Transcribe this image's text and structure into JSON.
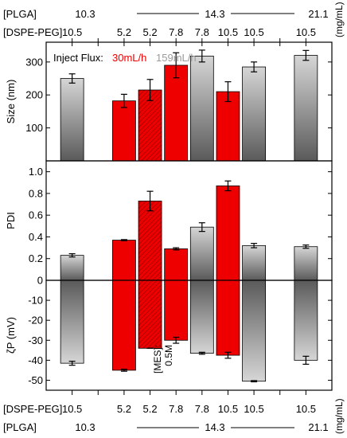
{
  "header_top": {
    "plga_label": "[PLGA]",
    "plga_values": [
      "10.3",
      "14.3",
      "21.1"
    ],
    "dspe_label": "[DSPE-PEG]",
    "dspe_values": [
      "10.5",
      "5.2",
      "5.2",
      "7.8",
      "7.8",
      "10.5",
      "10.5",
      "10.5"
    ],
    "unit": "(mg/mL)"
  },
  "header_bottom": {
    "dspe_label": "[DSPE-PEG]",
    "dspe_values": [
      "10.5",
      "5.2",
      "5.2",
      "7.8",
      "7.8",
      "10.5",
      "10.5",
      "10.5"
    ],
    "plga_label": "[PLGA]",
    "plga_values": [
      "10.3",
      "14.3",
      "21.1"
    ],
    "unit": "(mg/mL)"
  },
  "legend": {
    "prefix": "Inject Flux:",
    "item_red": "30mL/h",
    "item_gray": "159mL/h"
  },
  "annotation": {
    "line1": "[MES]:",
    "line2": "0.5M"
  },
  "colors": {
    "red_flux": "#ee0000",
    "gray_flux_light": "#d6d6d6",
    "gray_flux_dark": "#5a5a5a"
  },
  "chart_data": [
    {
      "type": "bar",
      "ylabel": "Size (nm)",
      "ylim": [
        0,
        360
      ],
      "yticks": [
        100,
        200,
        300
      ],
      "x": [
        1,
        3,
        4,
        5,
        6,
        7,
        8,
        10
      ],
      "values": [
        250,
        182,
        215,
        290,
        318,
        210,
        285,
        320
      ],
      "errors": [
        14,
        20,
        32,
        38,
        18,
        30,
        15,
        15
      ],
      "flux": [
        "159",
        "30",
        "30-MES",
        "30",
        "159",
        "30",
        "159",
        "159"
      ]
    },
    {
      "type": "bar",
      "ylabel": "PDI",
      "ylim": [
        0,
        1.1
      ],
      "yticks": [
        0.2,
        0.4,
        0.6,
        0.8,
        1.0
      ],
      "tick_labels": [
        "0.2",
        "0.4",
        "0.6",
        "0.8",
        "1.0"
      ],
      "x": [
        1,
        3,
        4,
        5,
        6,
        7,
        8,
        10
      ],
      "values": [
        0.23,
        0.37,
        0.73,
        0.29,
        0.49,
        0.87,
        0.32,
        0.31
      ],
      "errors": [
        0.015,
        0.005,
        0.09,
        0.01,
        0.04,
        0.045,
        0.02,
        0.015
      ],
      "flux": [
        "159",
        "30",
        "30-MES",
        "30",
        "159",
        "30",
        "159",
        "159"
      ]
    },
    {
      "type": "bar",
      "ylabel": "ζP (mV)",
      "ylim": [
        -55,
        0
      ],
      "yticks": [
        0,
        -10,
        -20,
        -30,
        -40,
        -50
      ],
      "x": [
        1,
        3,
        4,
        5,
        6,
        7,
        8,
        10
      ],
      "values": [
        -41.5,
        -45,
        -34,
        -30,
        -36.5,
        -37.5,
        -50.5,
        -40
      ],
      "errors": [
        1,
        0.5,
        0,
        1.5,
        0.5,
        1.5,
        0.3,
        2
      ],
      "flux": [
        "159",
        "30",
        "30-MES",
        "30",
        "159",
        "30",
        "159",
        "159"
      ]
    }
  ]
}
